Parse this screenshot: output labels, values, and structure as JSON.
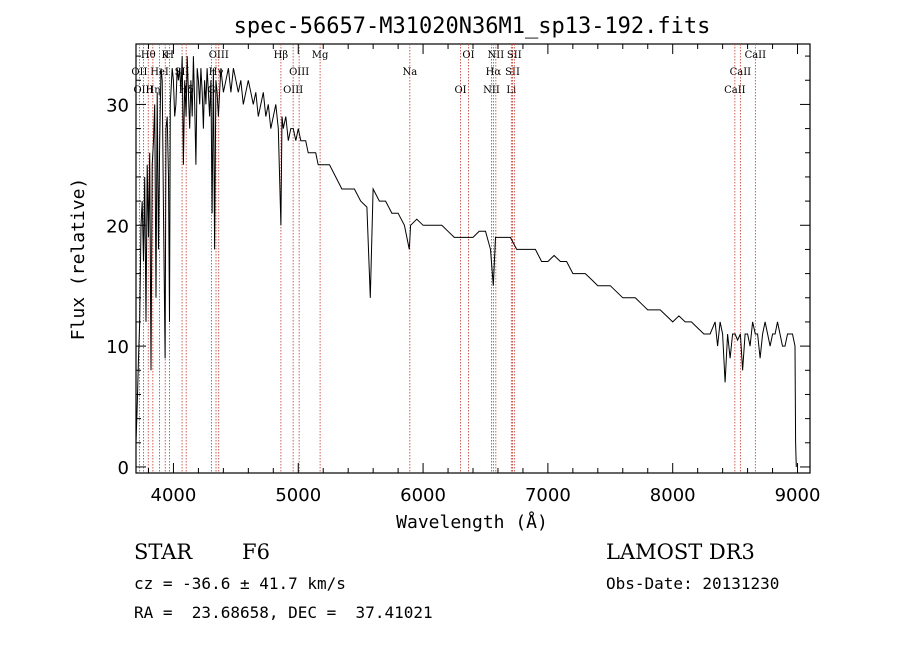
{
  "chart_data": {
    "type": "line",
    "title": "spec-56657-M31020N36M1_sp13-192.fits",
    "xlabel": "Wavelength (Å)",
    "ylabel": "Flux (relative)",
    "xlim": [
      3700,
      9100
    ],
    "ylim": [
      -0.5,
      35
    ],
    "grid": false,
    "x_ticks": [
      4000,
      5000,
      6000,
      7000,
      8000,
      9000
    ],
    "y_ticks": [
      0,
      10,
      20,
      30
    ],
    "series": [
      {
        "name": "spectrum",
        "x": [
          3700,
          3710,
          3720,
          3730,
          3740,
          3750,
          3760,
          3770,
          3780,
          3790,
          3800,
          3810,
          3820,
          3830,
          3840,
          3850,
          3860,
          3870,
          3880,
          3890,
          3900,
          3910,
          3920,
          3933,
          3940,
          3950,
          3960,
          3968,
          3975,
          3990,
          4000,
          4010,
          4020,
          4030,
          4040,
          4050,
          4060,
          4070,
          4080,
          4090,
          4101,
          4110,
          4120,
          4130,
          4140,
          4150,
          4160,
          4170,
          4180,
          4190,
          4200,
          4210,
          4220,
          4230,
          4240,
          4250,
          4260,
          4270,
          4280,
          4290,
          4300,
          4310,
          4320,
          4330,
          4340,
          4350,
          4360,
          4370,
          4380,
          4390,
          4400,
          4420,
          4440,
          4460,
          4480,
          4500,
          4520,
          4540,
          4560,
          4580,
          4600,
          4620,
          4640,
          4660,
          4680,
          4700,
          4720,
          4740,
          4760,
          4780,
          4800,
          4820,
          4840,
          4861,
          4870,
          4880,
          4900,
          4920,
          4940,
          4960,
          4980,
          5000,
          5020,
          5040,
          5060,
          5080,
          5100,
          5120,
          5140,
          5160,
          5180,
          5200,
          5250,
          5300,
          5350,
          5400,
          5450,
          5500,
          5550,
          5577,
          5600,
          5650,
          5700,
          5750,
          5800,
          5850,
          5890,
          5900,
          5950,
          6000,
          6050,
          6100,
          6150,
          6200,
          6250,
          6300,
          6350,
          6400,
          6450,
          6500,
          6540,
          6563,
          6580,
          6600,
          6650,
          6700,
          6750,
          6800,
          6850,
          6900,
          6950,
          7000,
          7050,
          7100,
          7150,
          7200,
          7250,
          7300,
          7350,
          7400,
          7450,
          7500,
          7550,
          7600,
          7650,
          7700,
          7750,
          7800,
          7850,
          7900,
          7950,
          8000,
          8050,
          8100,
          8150,
          8200,
          8250,
          8300,
          8340,
          8360,
          8380,
          8400,
          8420,
          8440,
          8460,
          8480,
          8500,
          8520,
          8542,
          8560,
          8580,
          8600,
          8620,
          8640,
          8662,
          8680,
          8700,
          8720,
          8740,
          8760,
          8780,
          8800,
          8820,
          8840,
          8860,
          8880,
          8900,
          8920,
          8940,
          8960,
          8980,
          8985,
          8990
        ],
        "y": [
          2,
          5,
          9,
          12,
          20,
          22,
          17,
          24,
          12,
          25,
          19,
          26,
          8,
          25,
          27,
          30,
          14,
          31,
          18,
          27,
          33,
          32,
          21,
          9,
          28,
          29,
          24,
          12,
          30,
          33,
          32,
          29,
          30,
          33,
          32,
          33,
          31,
          34,
          25,
          32,
          29,
          34,
          31,
          28,
          32,
          29,
          34,
          30,
          25,
          33,
          32,
          30,
          33,
          31,
          28,
          32,
          30,
          33,
          31,
          29,
          32,
          21,
          33,
          18,
          32,
          31,
          29,
          31,
          33,
          32,
          31,
          32,
          33,
          31,
          33,
          32,
          31,
          32,
          30,
          31,
          32,
          31,
          30,
          31,
          29,
          30,
          31,
          29,
          30,
          28,
          29,
          30,
          28,
          20,
          29,
          28,
          29,
          27,
          28,
          28,
          27,
          28,
          27,
          27,
          27,
          26,
          26,
          26,
          26,
          25,
          25,
          25,
          25,
          24,
          23,
          23,
          23,
          22,
          21.5,
          14,
          23,
          22,
          22,
          21,
          21,
          20,
          18,
          20,
          20.5,
          20,
          20,
          20,
          20,
          19.5,
          19,
          19,
          19,
          19,
          19.5,
          19.5,
          18,
          15,
          19,
          19,
          19,
          19,
          18,
          18,
          18,
          18,
          17,
          17,
          17.5,
          17,
          17,
          16,
          16,
          16,
          15.5,
          15,
          15,
          15,
          14.5,
          14,
          14,
          14,
          13.5,
          13,
          13,
          13,
          12.5,
          12,
          12.5,
          12,
          12,
          11.5,
          11,
          11,
          12,
          10,
          12,
          11,
          7,
          11,
          9,
          11,
          11,
          10.5,
          11,
          8,
          11,
          11,
          10,
          12,
          11,
          11,
          9,
          11,
          12,
          11,
          10,
          11,
          11,
          12,
          11,
          10,
          10,
          11,
          11,
          11,
          10,
          2,
          0
        ]
      }
    ],
    "lines": [
      {
        "label": "Hθ",
        "x": 3798
      },
      {
        "label": "OII",
        "x": 3727
      },
      {
        "label": "OIII",
        "x": 3760
      },
      {
        "label": "K",
        "x": 3934
      },
      {
        "label": "HeI",
        "x": 3889
      },
      {
        "label": "Hη",
        "x": 3835
      },
      {
        "label": "H",
        "x": 3969
      },
      {
        "label": "SII",
        "x": 4069
      },
      {
        "label": "Hδ",
        "x": 4102
      },
      {
        "label": "OIII",
        "x": 4363
      },
      {
        "label": "Hγ",
        "x": 4341
      },
      {
        "label": "G",
        "x": 4305
      },
      {
        "label": "Hβ",
        "x": 4861
      },
      {
        "label": "OIII",
        "x": 5007
      },
      {
        "label": "OIII",
        "x": 4959
      },
      {
        "label": "Mg",
        "x": 5175
      },
      {
        "label": "Na",
        "x": 5894
      },
      {
        "label": "OI",
        "x": 6300
      },
      {
        "label": "OI",
        "x": 6364
      },
      {
        "label": "Hα",
        "x": 6563
      },
      {
        "label": "NII",
        "x": 6548
      },
      {
        "label": "NII",
        "x": 6583
      },
      {
        "label": "SII",
        "x": 6717
      },
      {
        "label": "Li",
        "x": 6707
      },
      {
        "label": "SII",
        "x": 6731
      },
      {
        "label": "CaII",
        "x": 8542
      },
      {
        "label": "CaII",
        "x": 8498
      },
      {
        "label": "CaII",
        "x": 8662
      }
    ]
  },
  "info": {
    "object_class": "STAR",
    "subclass": "F6",
    "survey": "LAMOST DR3",
    "cz": "cz = -36.6 ± 41.7 km/s",
    "obs_date": "Obs-Date: 20131230",
    "coords": "RA =  23.68658, DEC =  37.41021"
  }
}
